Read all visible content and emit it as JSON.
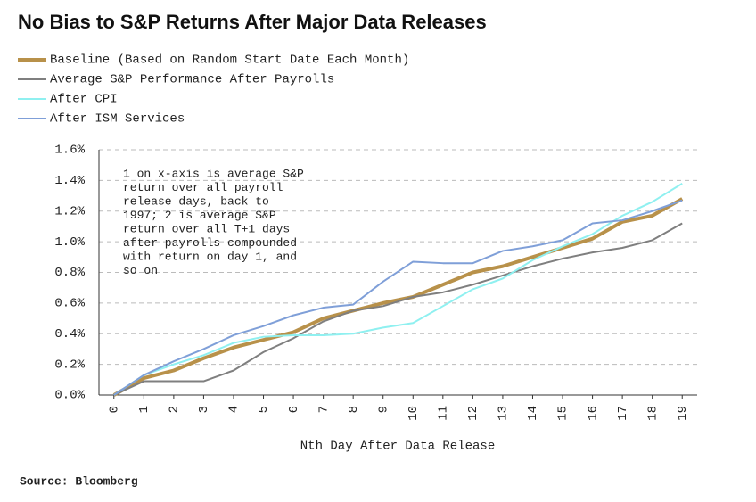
{
  "chart_data": {
    "type": "line",
    "title": "No Bias to S&P Returns After Major Data Releases",
    "x_label": "Nth Day After Data Release",
    "source": "Source: Bloomberg",
    "annotation": [
      "1 on x-axis is average S&P",
      "return over all payroll",
      "release days, back to",
      "1997; 2 is average S&P",
      "return over all T+1 days",
      "after payrolls compounded",
      "with return on day 1, and",
      "so on"
    ],
    "x": [
      0,
      1,
      2,
      3,
      4,
      5,
      6,
      7,
      8,
      9,
      10,
      11,
      12,
      13,
      14,
      15,
      16,
      17,
      18,
      19
    ],
    "xlim": [
      -0.5,
      19.5
    ],
    "xticks": [
      0,
      1,
      2,
      3,
      4,
      5,
      6,
      7,
      8,
      9,
      10,
      11,
      12,
      13,
      14,
      15,
      16,
      17,
      18,
      19
    ],
    "ylim": [
      0,
      1.6
    ],
    "yticks": [
      {
        "value": 0,
        "label": "0.0%"
      },
      {
        "value": 0.2,
        "label": "0.2%"
      },
      {
        "value": 0.4,
        "label": "0.4%"
      },
      {
        "value": 0.6,
        "label": "0.6%"
      },
      {
        "value": 0.8,
        "label": "0.8%"
      },
      {
        "value": 1.0,
        "label": "1.0%"
      },
      {
        "value": 1.2,
        "label": "1.2%"
      },
      {
        "value": 1.4,
        "label": "1.4%"
      },
      {
        "value": 1.6,
        "label": "1.6%"
      }
    ],
    "grid": true,
    "series": [
      {
        "name": "Baseline (Based on Random Start Date Each Month)",
        "color": "#b8914a",
        "width": 4,
        "values": [
          0,
          0.11,
          0.16,
          0.24,
          0.31,
          0.36,
          0.41,
          0.5,
          0.55,
          0.6,
          0.64,
          0.72,
          0.8,
          0.84,
          0.9,
          0.96,
          1.02,
          1.13,
          1.17,
          1.28
        ]
      },
      {
        "name": "Average S&P Performance After Payrolls",
        "color": "#7f7f7f",
        "width": 2,
        "values": [
          0,
          0.09,
          0.09,
          0.09,
          0.16,
          0.28,
          0.37,
          0.48,
          0.55,
          0.58,
          0.64,
          0.67,
          0.72,
          0.78,
          0.84,
          0.89,
          0.93,
          0.96,
          1.01,
          1.12
        ]
      },
      {
        "name": "After CPI",
        "color": "#8ff0f0",
        "width": 2,
        "values": [
          0,
          0.13,
          0.2,
          0.26,
          0.34,
          0.38,
          0.39,
          0.39,
          0.4,
          0.44,
          0.47,
          0.58,
          0.69,
          0.76,
          0.88,
          0.97,
          1.05,
          1.17,
          1.26,
          1.38
        ]
      },
      {
        "name": "After ISM Services",
        "color": "#7f9fd8",
        "width": 2,
        "values": [
          0,
          0.13,
          0.22,
          0.3,
          0.39,
          0.45,
          0.52,
          0.57,
          0.59,
          0.74,
          0.87,
          0.86,
          0.86,
          0.94,
          0.97,
          1.01,
          1.12,
          1.14,
          1.2,
          1.27
        ]
      }
    ]
  }
}
